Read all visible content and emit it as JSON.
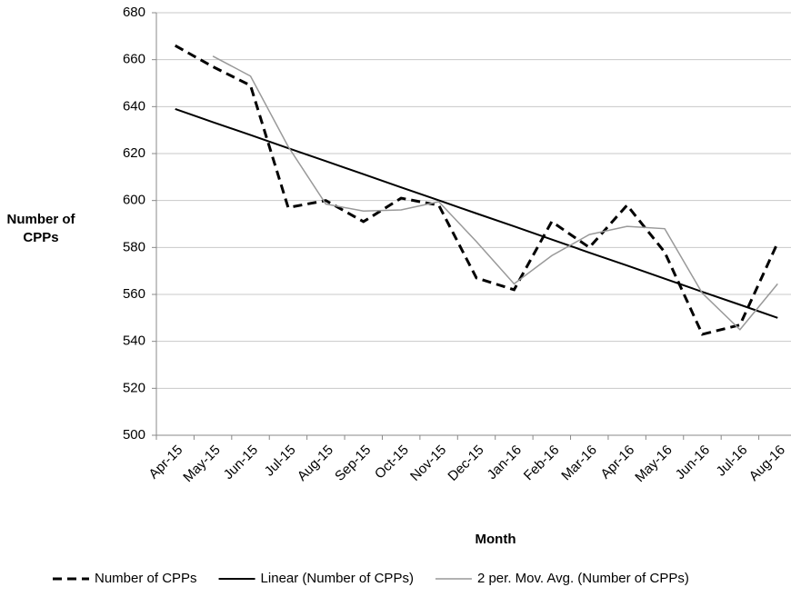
{
  "chart_data": {
    "type": "line",
    "x_label": "Month",
    "y_label": "Number of CPPs",
    "categories": [
      "Apr-15",
      "May-15",
      "Jun-15",
      "Jul-15",
      "Aug-15",
      "Sep-15",
      "Oct-15",
      "Nov-15",
      "Dec-15",
      "Jan-16",
      "Feb-16",
      "Mar-16",
      "Apr-16",
      "May-16",
      "Jun-16",
      "Jul-16",
      "Aug-16"
    ],
    "series": [
      {
        "name": "Number of CPPs",
        "color": "#000000",
        "line_style": "dashed",
        "line_width": 3,
        "values": [
          666,
          657,
          649,
          597,
          600,
          591,
          601,
          598,
          567,
          562,
          591,
          580,
          598,
          578,
          543,
          547,
          582
        ]
      },
      {
        "name": "Linear (Number of CPPs)",
        "color": "#000000",
        "line_style": "solid",
        "line_width": 2,
        "values": [
          639,
          633.4,
          627.9,
          622.3,
          616.8,
          611.2,
          605.6,
          600.1,
          594.5,
          589.0,
          583.4,
          577.8,
          572.3,
          566.7,
          561.1,
          555.6,
          550
        ]
      },
      {
        "name": "2 per. Mov. Avg. (Number of CPPs)",
        "color": "#999999",
        "line_style": "solid",
        "line_width": 1.5,
        "values": [
          null,
          661.5,
          653,
          623,
          598.5,
          595.5,
          596,
          599.5,
          582.5,
          564.5,
          576.5,
          585.5,
          589,
          588,
          560.5,
          545,
          564.5
        ]
      }
    ],
    "ylim": [
      500,
      680
    ],
    "yticks": [
      500,
      520,
      540,
      560,
      580,
      600,
      620,
      640,
      660,
      680
    ],
    "grid": true,
    "legend": "bottom"
  }
}
